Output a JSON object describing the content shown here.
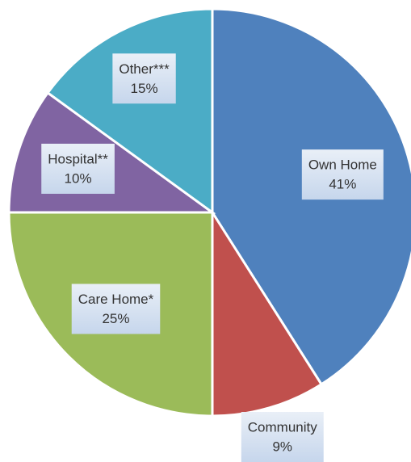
{
  "chart_data": {
    "type": "pie",
    "categories": [
      "Own Home",
      "Community",
      "Care Home*",
      "Hospital**",
      "Other***"
    ],
    "values": [
      41,
      9,
      25,
      10,
      15
    ],
    "value_labels": [
      "41%",
      "9%",
      "25%",
      "10%",
      "15%"
    ],
    "colors": [
      "#4f81bd",
      "#c0504d",
      "#9bbb59",
      "#8064a2",
      "#4bacc6"
    ]
  }
}
